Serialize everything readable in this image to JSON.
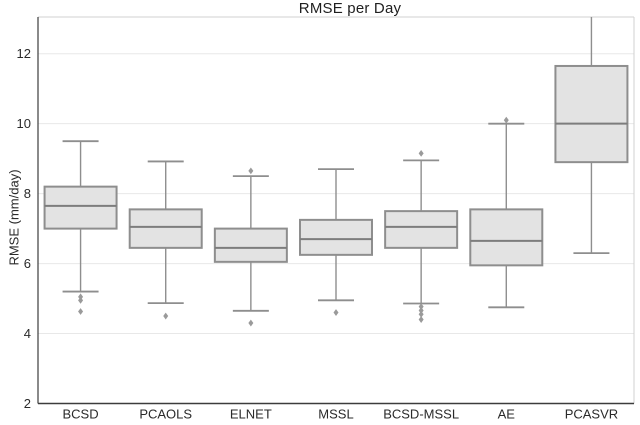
{
  "title": "RMSE per Day",
  "chart_data": {
    "type": "boxplot",
    "title": "RMSE per Day",
    "xlabel": "",
    "ylabel": "RMSE (mm/day)",
    "ylim": [
      2,
      13.05
    ],
    "yticks": [
      2,
      4,
      6,
      8,
      10,
      12
    ],
    "grid": "horizontal",
    "legend": "none",
    "categories": [
      "BCSD",
      "PCAOLS",
      "ELNET",
      "MSSL",
      "BCSD-MSSL",
      "AE",
      "PCASVR"
    ],
    "boxes": [
      {
        "label": "BCSD",
        "whisker_low": 5.2,
        "q1": 7.0,
        "median": 7.65,
        "q3": 8.2,
        "whisker_high": 9.5,
        "outliers": [
          5.05,
          4.95,
          4.63
        ],
        "clipped_high": false
      },
      {
        "label": "PCAOLS",
        "whisker_low": 4.87,
        "q1": 6.45,
        "median": 7.05,
        "q3": 7.55,
        "whisker_high": 8.92,
        "outliers": [
          4.5
        ],
        "clipped_high": false
      },
      {
        "label": "ELNET",
        "whisker_low": 4.65,
        "q1": 6.05,
        "median": 6.45,
        "q3": 7.0,
        "whisker_high": 8.5,
        "outliers": [
          8.65,
          4.3
        ],
        "clipped_high": false
      },
      {
        "label": "MSSL",
        "whisker_low": 4.95,
        "q1": 6.25,
        "median": 6.7,
        "q3": 7.25,
        "whisker_high": 8.7,
        "outliers": [
          4.6
        ],
        "clipped_high": false
      },
      {
        "label": "BCSD-MSSL",
        "whisker_low": 4.86,
        "q1": 6.45,
        "median": 7.05,
        "q3": 7.5,
        "whisker_high": 8.95,
        "outliers": [
          9.15,
          4.77,
          4.66,
          4.55,
          4.4
        ],
        "clipped_high": false
      },
      {
        "label": "AE",
        "whisker_low": 4.75,
        "q1": 5.95,
        "median": 6.65,
        "q3": 7.55,
        "whisker_high": 10.0,
        "outliers": [
          10.1
        ],
        "clipped_high": false
      },
      {
        "label": "PCASVR",
        "whisker_low": 6.3,
        "q1": 8.9,
        "median": 10.0,
        "q3": 11.65,
        "whisker_high": 13.05,
        "outliers": [],
        "clipped_high": true
      }
    ],
    "colors": {
      "background": "#ffffff",
      "box_fill": "#e3e3e3",
      "box_stroke": "#8e8e8e",
      "median_line": "#7d7d7d",
      "whisker": "#8e8e8e",
      "outlier": "#9a9a9a",
      "gridline": "#e8e8e8",
      "frame": "#d0d0d0",
      "axis": "#3c3c3c",
      "text": "#2a2a2a"
    }
  }
}
